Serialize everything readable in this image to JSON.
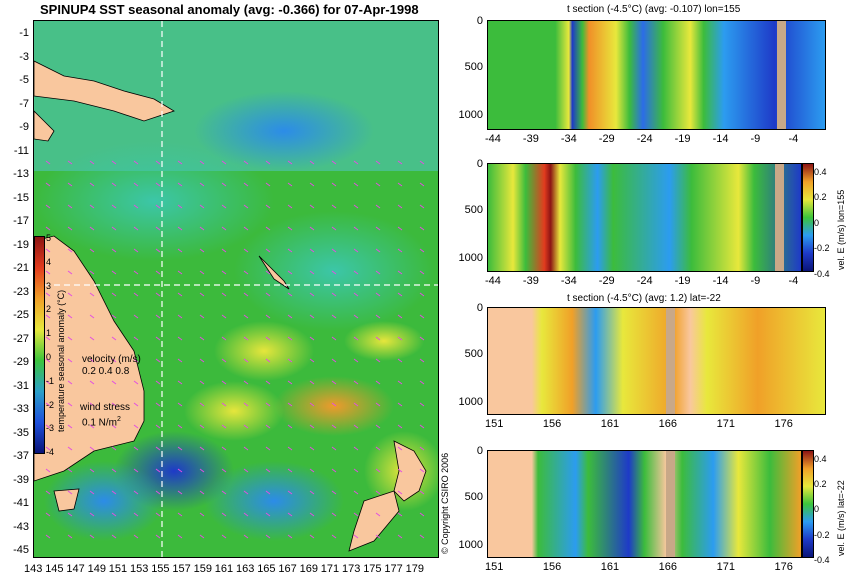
{
  "main_title": "SPINUP4 SST seasonal anomaly (avg: -0.366) for 07-Apr-1998",
  "map": {
    "y_ticks": [
      "-1",
      "-3",
      "-5",
      "-7",
      "-9",
      "-11",
      "-13",
      "-15",
      "-17",
      "-19",
      "-21",
      "-23",
      "-25",
      "-27",
      "-29",
      "-31",
      "-33",
      "-35",
      "-37",
      "-39",
      "-41",
      "-43",
      "-45"
    ],
    "x_ticks": [
      "143",
      "145",
      "147",
      "149",
      "151",
      "153",
      "155",
      "157",
      "159",
      "161",
      "163",
      "165",
      "167",
      "169",
      "171",
      "173",
      "175",
      "177",
      "179"
    ],
    "colorbar_label": "temperature seasonal anomaly (°C)",
    "colorbar_ticks": [
      "5",
      "4",
      "3",
      "2",
      "1",
      "0",
      "-1",
      "-2",
      "-3",
      "-4"
    ],
    "velocity_label": "velocity (m/s)",
    "velocity_scale": "0.2 0.4 0.8",
    "wind_label": "wind stress",
    "wind_scale": "0.1 N/m",
    "wind_scale_sup": "2",
    "copyright": "© Copyright CSIRO 2006",
    "colors": {
      "land": "#f9c79e",
      "ocean_base": "#3cba3c",
      "crosshair": "#ffffff",
      "arrows": "#e24fe2"
    }
  },
  "panels": [
    {
      "title": "t section (-4.5°C) (avg: -0.107) lon=155",
      "y_ticks": [
        "0",
        "500",
        "1000"
      ],
      "x_ticks": [
        "-44",
        "-39",
        "-34",
        "-29",
        "-24",
        "-19",
        "-14",
        "-9",
        "-4"
      ]
    },
    {
      "title": "",
      "y_ticks": [
        "0",
        "500",
        "1000"
      ],
      "x_ticks": [
        "-44",
        "-39",
        "-34",
        "-29",
        "-24",
        "-19",
        "-14",
        "-9",
        "-4"
      ],
      "side_label": "vel. E (m/s) lon=155",
      "colorbar_ticks": [
        "0.4",
        "0.2",
        "0",
        "-0.2",
        "-0.4"
      ]
    },
    {
      "title": "t section (-4.5°C) (avg: 1.2) lat=-22",
      "y_ticks": [
        "0",
        "500",
        "1000"
      ],
      "x_ticks": [
        "151",
        "156",
        "161",
        "166",
        "171",
        "176"
      ]
    },
    {
      "title": "",
      "y_ticks": [
        "0",
        "500",
        "1000"
      ],
      "x_ticks": [
        "151",
        "156",
        "161",
        "166",
        "171",
        "176"
      ],
      "side_label": "vel. E (m/s) lat=-22",
      "colorbar_ticks": [
        "0.4",
        "0.2",
        "0",
        "-0.2",
        "-0.4"
      ]
    }
  ]
}
